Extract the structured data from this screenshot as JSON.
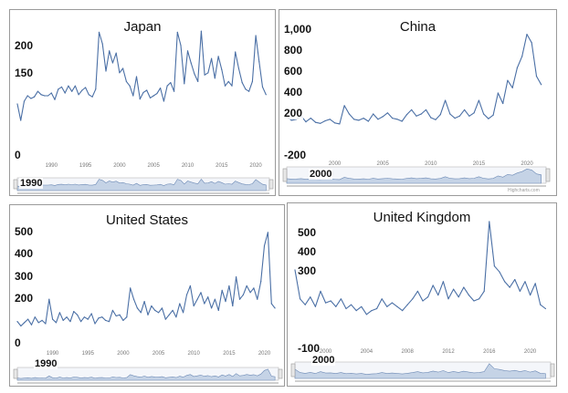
{
  "colors": {
    "line": "#4a6fa5",
    "navigator_fill": "#c5d3e6",
    "navigator_line": "#6d8ab5",
    "grid": "#e6e6e6",
    "border": "#9a9a9a"
  },
  "chart_data": [
    {
      "type": "line",
      "title": "Japan",
      "x": [
        1985.0,
        1985.5,
        1986.0,
        1986.5,
        1987.0,
        1987.5,
        1988.0,
        1988.5,
        1989.0,
        1989.5,
        1990.0,
        1990.5,
        1991.0,
        1991.5,
        1992.0,
        1992.5,
        1993.0,
        1993.5,
        1994.0,
        1994.5,
        1995.0,
        1995.5,
        1996.0,
        1996.5,
        1997.0,
        1997.5,
        1998.0,
        1998.5,
        1999.0,
        1999.5,
        2000.0,
        2000.5,
        2001.0,
        2001.5,
        2002.0,
        2002.5,
        2003.0,
        2003.5,
        2004.0,
        2004.5,
        2005.0,
        2005.5,
        2006.0,
        2006.5,
        2007.0,
        2007.5,
        2008.0,
        2008.5,
        2009.0,
        2009.5,
        2010.0,
        2010.5,
        2011.0,
        2011.5,
        2012.0,
        2012.5,
        2013.0,
        2013.5,
        2014.0,
        2014.5,
        2015.0,
        2015.5,
        2016.0,
        2016.5,
        2017.0,
        2017.5,
        2018.0,
        2018.5,
        2019.0,
        2019.5,
        2020.0,
        2020.5,
        2021.0,
        2021.5
      ],
      "values": [
        95,
        65,
        100,
        110,
        105,
        108,
        118,
        112,
        110,
        110,
        115,
        103,
        122,
        126,
        115,
        128,
        118,
        128,
        112,
        120,
        125,
        112,
        108,
        122,
        226,
        205,
        155,
        192,
        170,
        188,
        152,
        160,
        136,
        128,
        110,
        145,
        104,
        116,
        120,
        106,
        110,
        114,
        124,
        100,
        128,
        134,
        118,
        226,
        202,
        132,
        192,
        170,
        150,
        136,
        228,
        148,
        152,
        178,
        142,
        182,
        158,
        128,
        136,
        128,
        190,
        160,
        134,
        122,
        118,
        136,
        220,
        172,
        126,
        112
      ],
      "ylim": [
        0,
        230
      ],
      "xlim": [
        1985,
        2022
      ],
      "y_ticks": [
        {
          "value": 200,
          "label": "200"
        },
        {
          "value": 150,
          "label": "150"
        },
        {
          "value": 0,
          "label": "0"
        }
      ],
      "x_ticks": [
        {
          "value": 1990,
          "label": "1990"
        },
        {
          "value": 1995,
          "label": "1995"
        },
        {
          "value": 2000,
          "label": "2000"
        },
        {
          "value": 2005,
          "label": "2005"
        },
        {
          "value": 2010,
          "label": "2010"
        },
        {
          "value": 2015,
          "label": "2015"
        },
        {
          "value": 2020,
          "label": "2020"
        }
      ],
      "navigator_label": "1990",
      "grid": false,
      "legend": "none"
    },
    {
      "type": "line",
      "title": "China",
      "x": [
        1995.0,
        1995.5,
        1996.0,
        1996.5,
        1997.0,
        1997.5,
        1998.0,
        1998.5,
        1999.0,
        1999.5,
        2000.0,
        2000.5,
        2001.0,
        2001.5,
        2002.0,
        2002.5,
        2003.0,
        2003.5,
        2004.0,
        2004.5,
        2005.0,
        2005.5,
        2006.0,
        2006.5,
        2007.0,
        2007.5,
        2008.0,
        2008.5,
        2009.0,
        2009.5,
        2010.0,
        2010.5,
        2011.0,
        2011.5,
        2012.0,
        2012.5,
        2013.0,
        2013.5,
        2014.0,
        2014.5,
        2015.0,
        2015.5,
        2016.0,
        2016.5,
        2017.0,
        2017.5,
        2018.0,
        2018.5,
        2019.0,
        2019.5,
        2020.0,
        2020.5,
        2021.0,
        2021.5
      ],
      "values": [
        175,
        140,
        150,
        180,
        125,
        160,
        120,
        110,
        135,
        150,
        115,
        105,
        280,
        200,
        150,
        140,
        160,
        130,
        200,
        150,
        175,
        210,
        160,
        150,
        130,
        195,
        240,
        180,
        200,
        240,
        165,
        145,
        195,
        330,
        200,
        160,
        180,
        240,
        180,
        210,
        330,
        200,
        155,
        190,
        400,
        300,
        520,
        450,
        640,
        750,
        960,
        880,
        560,
        480
      ],
      "ylim": [
        -200,
        1000
      ],
      "xlim": [
        1995,
        2022
      ],
      "y_ticks": [
        {
          "value": 1000,
          "label": "1,000"
        },
        {
          "value": 800,
          "label": "800"
        },
        {
          "value": 600,
          "label": "600"
        },
        {
          "value": 400,
          "label": "400"
        },
        {
          "value": 200,
          "label": "200"
        },
        {
          "value": -200,
          "label": "-200"
        }
      ],
      "x_ticks": [
        {
          "value": 2000,
          "label": "2000"
        },
        {
          "value": 2005,
          "label": "2005"
        },
        {
          "value": 2010,
          "label": "2010"
        },
        {
          "value": 2015,
          "label": "2015"
        },
        {
          "value": 2020,
          "label": "2020"
        }
      ],
      "navigator_label": "2000",
      "credit": "Highcharts.com",
      "grid": false,
      "legend": "none"
    },
    {
      "type": "line",
      "title": "United States",
      "x": [
        1985.0,
        1985.5,
        1986.0,
        1986.5,
        1987.0,
        1987.5,
        1988.0,
        1988.5,
        1989.0,
        1989.5,
        1990.0,
        1990.5,
        1991.0,
        1991.5,
        1992.0,
        1992.5,
        1993.0,
        1993.5,
        1994.0,
        1994.5,
        1995.0,
        1995.5,
        1996.0,
        1996.5,
        1997.0,
        1997.5,
        1998.0,
        1998.5,
        1999.0,
        1999.5,
        2000.0,
        2000.5,
        2001.0,
        2001.5,
        2002.0,
        2002.5,
        2003.0,
        2003.5,
        2004.0,
        2004.5,
        2005.0,
        2005.5,
        2006.0,
        2006.5,
        2007.0,
        2007.5,
        2008.0,
        2008.5,
        2009.0,
        2009.5,
        2010.0,
        2010.5,
        2011.0,
        2011.5,
        2012.0,
        2012.5,
        2013.0,
        2013.5,
        2014.0,
        2014.5,
        2015.0,
        2015.5,
        2016.0,
        2016.5,
        2017.0,
        2017.5,
        2018.0,
        2018.5,
        2019.0,
        2019.5,
        2020.0,
        2020.5,
        2021.0,
        2021.5
      ],
      "values": [
        100,
        80,
        95,
        110,
        85,
        120,
        95,
        105,
        90,
        200,
        110,
        95,
        140,
        105,
        120,
        100,
        145,
        130,
        100,
        120,
        110,
        135,
        90,
        115,
        120,
        105,
        100,
        150,
        125,
        130,
        105,
        120,
        250,
        200,
        160,
        140,
        190,
        130,
        170,
        150,
        140,
        160,
        110,
        130,
        150,
        120,
        180,
        140,
        220,
        260,
        170,
        200,
        230,
        180,
        210,
        160,
        200,
        150,
        240,
        190,
        260,
        170,
        300,
        200,
        220,
        260,
        230,
        250,
        200,
        280,
        440,
        500,
        180,
        160
      ],
      "ylim": [
        0,
        520
      ],
      "xlim": [
        1985,
        2022
      ],
      "y_ticks": [
        {
          "value": 500,
          "label": "500"
        },
        {
          "value": 400,
          "label": "400"
        },
        {
          "value": 300,
          "label": "300"
        },
        {
          "value": 200,
          "label": "200"
        },
        {
          "value": 0,
          "label": "0"
        }
      ],
      "x_ticks": [
        {
          "value": 1990,
          "label": "1990"
        },
        {
          "value": 1995,
          "label": "1995"
        },
        {
          "value": 2000,
          "label": "2000"
        },
        {
          "value": 2005,
          "label": "2005"
        },
        {
          "value": 2010,
          "label": "2010"
        },
        {
          "value": 2015,
          "label": "2015"
        },
        {
          "value": 2020,
          "label": "2020"
        }
      ],
      "navigator_label": "1990",
      "grid": false,
      "legend": "none"
    },
    {
      "type": "line",
      "title": "United Kingdom",
      "x": [
        1997.0,
        1997.5,
        1998.0,
        1998.5,
        1999.0,
        1999.5,
        2000.0,
        2000.5,
        2001.0,
        2001.5,
        2002.0,
        2002.5,
        2003.0,
        2003.5,
        2004.0,
        2004.5,
        2005.0,
        2005.5,
        2006.0,
        2006.5,
        2007.0,
        2007.5,
        2008.0,
        2008.5,
        2009.0,
        2009.5,
        2010.0,
        2010.5,
        2011.0,
        2011.5,
        2012.0,
        2012.5,
        2013.0,
        2013.5,
        2014.0,
        2014.5,
        2015.0,
        2015.5,
        2016.0,
        2016.5,
        2017.0,
        2017.5,
        2018.0,
        2018.5,
        2019.0,
        2019.5,
        2020.0,
        2020.5,
        2021.0,
        2021.5
      ],
      "values": [
        310,
        160,
        130,
        170,
        120,
        200,
        140,
        150,
        120,
        160,
        110,
        130,
        100,
        120,
        80,
        100,
        110,
        160,
        120,
        140,
        120,
        100,
        130,
        160,
        200,
        150,
        170,
        230,
        180,
        250,
        160,
        210,
        170,
        220,
        180,
        150,
        160,
        200,
        560,
        330,
        300,
        250,
        220,
        260,
        200,
        250,
        180,
        240,
        130,
        110
      ],
      "ylim": [
        -100,
        560
      ],
      "xlim": [
        1997,
        2022
      ],
      "y_ticks": [
        {
          "value": 500,
          "label": "500"
        },
        {
          "value": 400,
          "label": "400"
        },
        {
          "value": 300,
          "label": "300"
        },
        {
          "value": -100,
          "label": "-100"
        }
      ],
      "x_ticks": [
        {
          "value": 2000,
          "label": "2000"
        },
        {
          "value": 2004,
          "label": "2004"
        },
        {
          "value": 2008,
          "label": "2008"
        },
        {
          "value": 2012,
          "label": "2012"
        },
        {
          "value": 2016,
          "label": "2016"
        },
        {
          "value": 2020,
          "label": "2020"
        }
      ],
      "navigator_label": "2000",
      "grid": false,
      "legend": "none"
    }
  ]
}
